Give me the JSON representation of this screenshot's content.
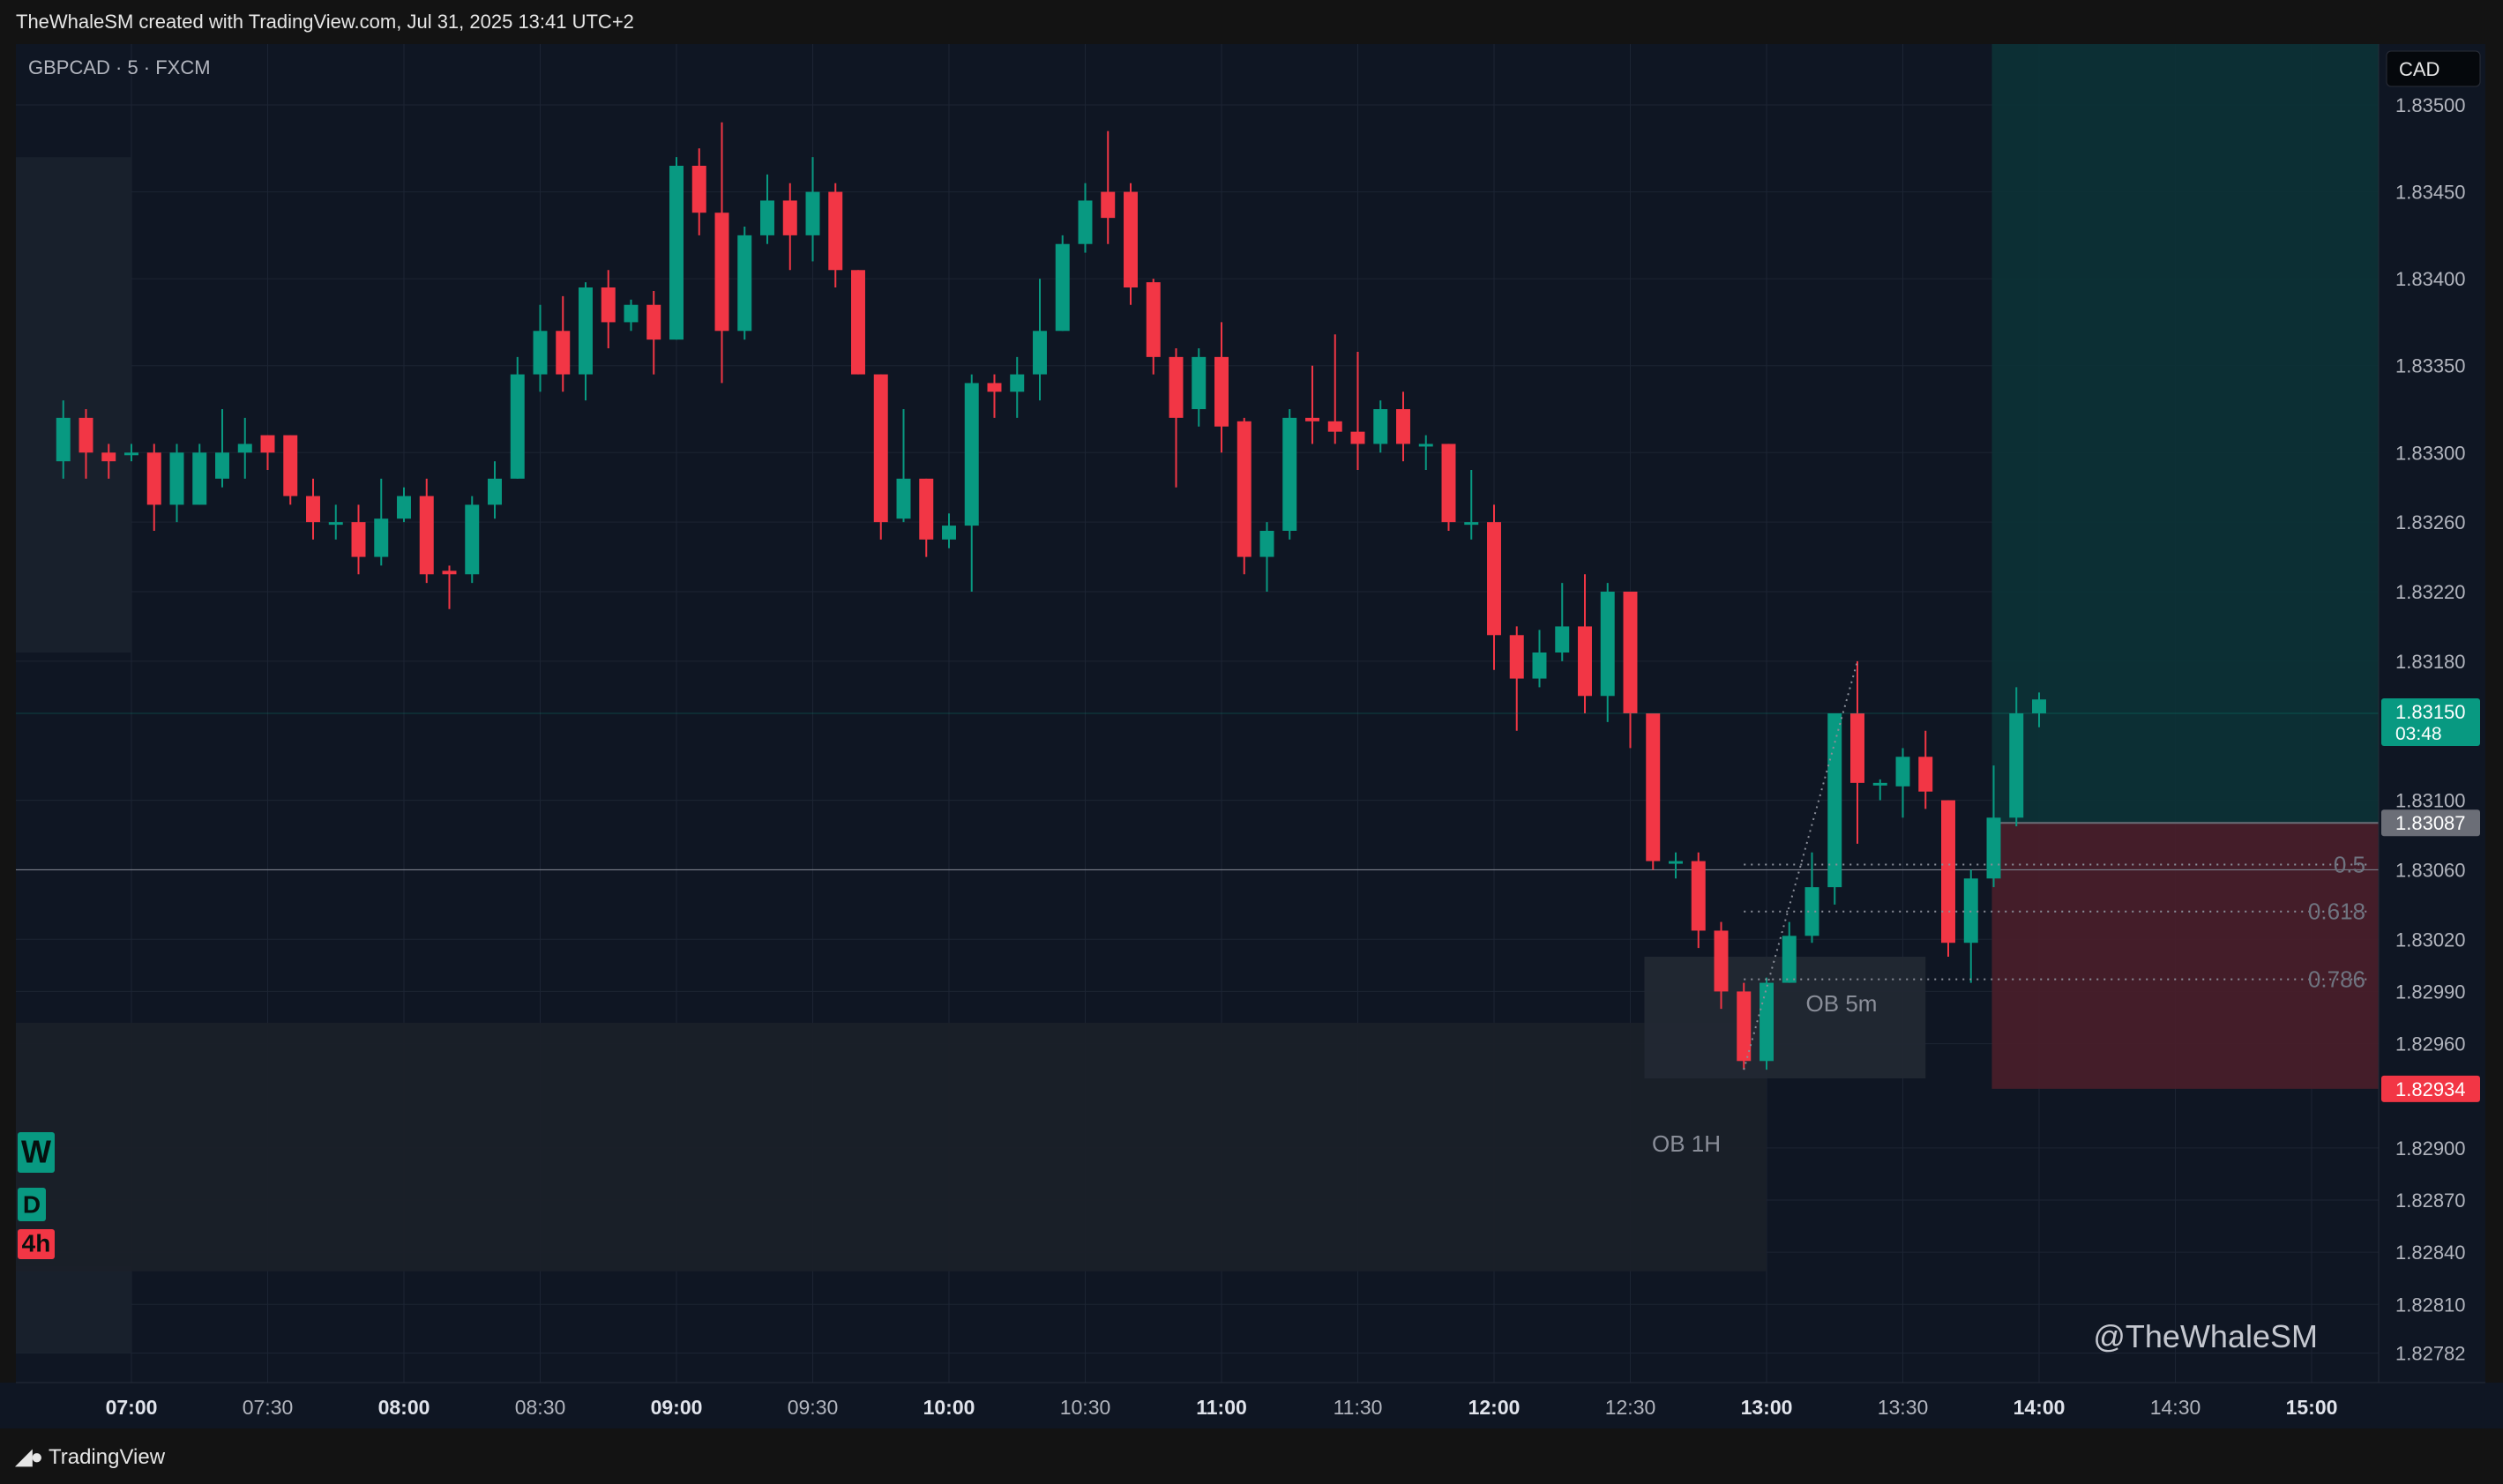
{
  "header": {
    "credit": "TheWhaleSM created with TradingView.com, Jul 31, 2025 13:41 UTC+2"
  },
  "footer": {
    "brand": "TradingView",
    "logo_icon": "tradingview-logo-icon"
  },
  "colors": {
    "up": "#089981",
    "down": "#f23645",
    "background": "#0f1623",
    "grid": "#1c2433",
    "text": "#b2b5be"
  },
  "chart_data": {
    "type": "candlestick",
    "symbol_label": "GBPCAD · 5 · FXCM",
    "currency": "CAD",
    "watermark": "@TheWhaleSM",
    "ylim": [
      1.82765,
      1.83535
    ],
    "y_ticks": [
      "1.83500",
      "1.83450",
      "1.83400",
      "1.83350",
      "1.83300",
      "1.83260",
      "1.83220",
      "1.83180",
      "1.83100",
      "1.83060",
      "1.83020",
      "1.82990",
      "1.82960",
      "1.82900",
      "1.82870",
      "1.82840",
      "1.82810",
      "1.82782"
    ],
    "x_ticks": [
      {
        "label": "07:00",
        "bold": true
      },
      {
        "label": "07:30",
        "bold": false
      },
      {
        "label": "08:00",
        "bold": true
      },
      {
        "label": "08:30",
        "bold": false
      },
      {
        "label": "09:00",
        "bold": true
      },
      {
        "label": "09:30",
        "bold": false
      },
      {
        "label": "10:00",
        "bold": true
      },
      {
        "label": "10:30",
        "bold": false
      },
      {
        "label": "11:00",
        "bold": true
      },
      {
        "label": "11:30",
        "bold": false
      },
      {
        "label": "12:00",
        "bold": true
      },
      {
        "label": "12:30",
        "bold": false
      },
      {
        "label": "13:00",
        "bold": true
      },
      {
        "label": "13:30",
        "bold": false
      },
      {
        "label": "14:00",
        "bold": true
      },
      {
        "label": "14:30",
        "bold": false
      },
      {
        "label": "15:00",
        "bold": true
      }
    ],
    "first_candle_time": "06:45",
    "candles": [
      [
        1.83295,
        1.8332,
        1.83285,
        1.8333
      ],
      [
        1.8332,
        1.833,
        1.83285,
        1.83325
      ],
      [
        1.833,
        1.83295,
        1.83285,
        1.83305
      ],
      [
        1.833,
        1.833,
        1.83295,
        1.83305
      ],
      [
        1.833,
        1.8327,
        1.83255,
        1.83305
      ],
      [
        1.8327,
        1.833,
        1.8326,
        1.83305
      ],
      [
        1.8327,
        1.833,
        1.8327,
        1.83305
      ],
      [
        1.83285,
        1.833,
        1.8328,
        1.83325
      ],
      [
        1.833,
        1.83305,
        1.83285,
        1.8332
      ],
      [
        1.8331,
        1.833,
        1.8329,
        1.8331
      ],
      [
        1.8331,
        1.83275,
        1.8327,
        1.8331
      ],
      [
        1.83275,
        1.8326,
        1.8325,
        1.83285
      ],
      [
        1.8326,
        1.8326,
        1.8325,
        1.8327
      ],
      [
        1.8326,
        1.8324,
        1.8323,
        1.8327
      ],
      [
        1.8324,
        1.83262,
        1.83235,
        1.83285
      ],
      [
        1.83262,
        1.83275,
        1.8326,
        1.8328
      ],
      [
        1.83275,
        1.8323,
        1.83225,
        1.83285
      ],
      [
        1.83232,
        1.8323,
        1.8321,
        1.83235
      ],
      [
        1.8323,
        1.8327,
        1.83225,
        1.83275
      ],
      [
        1.8327,
        1.83285,
        1.83262,
        1.83295
      ],
      [
        1.83285,
        1.83345,
        1.83285,
        1.83355
      ],
      [
        1.83345,
        1.8337,
        1.83335,
        1.83385
      ],
      [
        1.8337,
        1.83345,
        1.83335,
        1.8339
      ],
      [
        1.83345,
        1.83395,
        1.8333,
        1.83398
      ],
      [
        1.83395,
        1.83375,
        1.8336,
        1.83405
      ],
      [
        1.83375,
        1.83385,
        1.8337,
        1.83388
      ],
      [
        1.83385,
        1.83365,
        1.83345,
        1.83393
      ],
      [
        1.83365,
        1.83465,
        1.83365,
        1.8347
      ],
      [
        1.83465,
        1.83438,
        1.83425,
        1.83475
      ],
      [
        1.83438,
        1.8337,
        1.8334,
        1.8349
      ],
      [
        1.8337,
        1.83425,
        1.83365,
        1.8343
      ],
      [
        1.83425,
        1.83445,
        1.8342,
        1.8346
      ],
      [
        1.83445,
        1.83425,
        1.83405,
        1.83455
      ],
      [
        1.83425,
        1.8345,
        1.8341,
        1.8347
      ],
      [
        1.8345,
        1.83405,
        1.83395,
        1.83455
      ],
      [
        1.83405,
        1.83345,
        1.83345,
        1.83405
      ],
      [
        1.83345,
        1.8326,
        1.8325,
        1.83345
      ],
      [
        1.83262,
        1.83285,
        1.8326,
        1.83325
      ],
      [
        1.83285,
        1.8325,
        1.8324,
        1.83285
      ],
      [
        1.8325,
        1.83258,
        1.83245,
        1.83265
      ],
      [
        1.83258,
        1.8334,
        1.8322,
        1.83345
      ],
      [
        1.8334,
        1.83335,
        1.8332,
        1.83345
      ],
      [
        1.83335,
        1.83345,
        1.8332,
        1.83355
      ],
      [
        1.83345,
        1.8337,
        1.8333,
        1.834
      ],
      [
        1.8337,
        1.8342,
        1.8337,
        1.83425
      ],
      [
        1.8342,
        1.83445,
        1.83415,
        1.83455
      ],
      [
        1.8345,
        1.83435,
        1.8342,
        1.83485
      ],
      [
        1.8345,
        1.83395,
        1.83385,
        1.83455
      ],
      [
        1.83398,
        1.83355,
        1.83345,
        1.834
      ],
      [
        1.83355,
        1.8332,
        1.8328,
        1.8336
      ],
      [
        1.83325,
        1.83355,
        1.83315,
        1.8336
      ],
      [
        1.83355,
        1.83315,
        1.833,
        1.83375
      ],
      [
        1.83318,
        1.8324,
        1.8323,
        1.8332
      ],
      [
        1.8324,
        1.83255,
        1.8322,
        1.8326
      ],
      [
        1.83255,
        1.8332,
        1.8325,
        1.83325
      ],
      [
        1.8332,
        1.83318,
        1.83305,
        1.8335
      ],
      [
        1.83318,
        1.83312,
        1.83305,
        1.83368
      ],
      [
        1.83312,
        1.83305,
        1.8329,
        1.83358
      ],
      [
        1.83305,
        1.83325,
        1.833,
        1.8333
      ],
      [
        1.83325,
        1.83305,
        1.83295,
        1.83335
      ],
      [
        1.83305,
        1.83305,
        1.8329,
        1.8331
      ],
      [
        1.83305,
        1.8326,
        1.83255,
        1.83305
      ],
      [
        1.8326,
        1.8326,
        1.8325,
        1.8329
      ],
      [
        1.8326,
        1.83195,
        1.83175,
        1.8327
      ],
      [
        1.83195,
        1.8317,
        1.8314,
        1.832
      ],
      [
        1.8317,
        1.83185,
        1.83165,
        1.83198
      ],
      [
        1.83185,
        1.832,
        1.8318,
        1.83225
      ],
      [
        1.832,
        1.8316,
        1.8315,
        1.8323
      ],
      [
        1.8316,
        1.8322,
        1.83145,
        1.83225
      ],
      [
        1.8322,
        1.8315,
        1.8313,
        1.8322
      ],
      [
        1.8315,
        1.83065,
        1.8306,
        1.8315
      ],
      [
        1.83065,
        1.83065,
        1.83055,
        1.8307
      ],
      [
        1.83065,
        1.83025,
        1.83015,
        1.8307
      ],
      [
        1.83025,
        1.8299,
        1.8298,
        1.8303
      ],
      [
        1.8299,
        1.8295,
        1.82945,
        1.82995
      ],
      [
        1.8295,
        1.82995,
        1.82945,
        1.82998
      ],
      [
        1.82995,
        1.83022,
        1.82995,
        1.8303
      ],
      [
        1.83022,
        1.8305,
        1.83018,
        1.8307
      ],
      [
        1.8305,
        1.8315,
        1.8304,
        1.8315
      ],
      [
        1.8315,
        1.8311,
        1.83075,
        1.8318
      ],
      [
        1.8311,
        1.8311,
        1.831,
        1.83112
      ],
      [
        1.83108,
        1.83125,
        1.8309,
        1.8313
      ],
      [
        1.83125,
        1.83105,
        1.83095,
        1.8314
      ],
      [
        1.831,
        1.83018,
        1.8301,
        1.831
      ],
      [
        1.83018,
        1.83055,
        1.82995,
        1.8306
      ],
      [
        1.83055,
        1.8309,
        1.8305,
        1.8312
      ],
      [
        1.8309,
        1.8315,
        1.83085,
        1.83165
      ],
      [
        1.8315,
        1.83158,
        1.83142,
        1.83162
      ]
    ],
    "price_markers": [
      {
        "value": 1.8315,
        "label": "1.83150",
        "sublabel": "03:48",
        "color": "#089981"
      },
      {
        "value": 1.83087,
        "label": "1.83087",
        "color": "#6b6e77"
      },
      {
        "value": 1.82934,
        "label": "1.82934",
        "color": "#f23645"
      }
    ],
    "zones": [
      {
        "label": "OB 1H",
        "from": "06:45",
        "to": "13:00",
        "top": 1.82972,
        "bottom": 1.82829
      },
      {
        "label": "OB 5m",
        "from": "12:30",
        "to": "13:35",
        "top": 1.8301,
        "bottom": 1.8294
      }
    ],
    "fib_levels": [
      {
        "label": "0.5",
        "value": 1.83063
      },
      {
        "label": "0.618",
        "value": 1.83036
      },
      {
        "label": "0.786",
        "value": 1.82997
      }
    ],
    "position": {
      "from": "13:50",
      "entry": 1.83087,
      "target": 1.83535,
      "stop": 1.82934
    },
    "horizontal_line": 1.8306,
    "timeframe_badges": [
      {
        "label": "W",
        "color": "#089981"
      },
      {
        "label": "D",
        "color": "#089981"
      },
      {
        "label": "4h",
        "color": "#f23645"
      }
    ]
  }
}
